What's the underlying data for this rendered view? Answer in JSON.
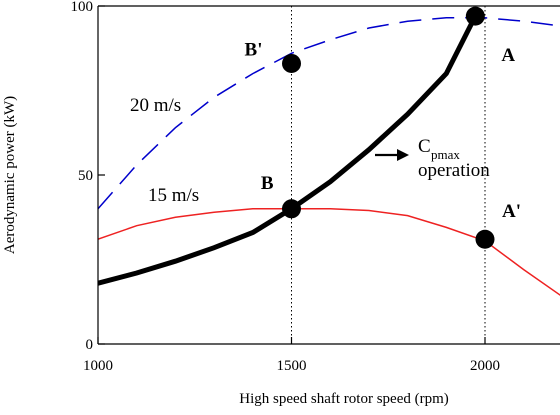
{
  "chart_data": {
    "type": "line",
    "xlabel": "High speed shaft rotor speed (rpm)",
    "ylabel": "Aerodynamic power (kW)",
    "xlim": [
      1000,
      2200
    ],
    "ylim": [
      0,
      100
    ],
    "xticks": [
      1000,
      1500,
      2000
    ],
    "yticks": [
      0,
      50,
      100
    ],
    "grid": false,
    "series": [
      {
        "name": "20 m/s",
        "style": "dashed",
        "color": "#0000cc",
        "x": [
          1000,
          1100,
          1200,
          1300,
          1400,
          1500,
          1600,
          1700,
          1800,
          1900,
          2000,
          2100,
          2200
        ],
        "y": [
          40,
          53,
          64,
          73,
          80,
          86,
          90,
          93.5,
          95.5,
          96.5,
          96.5,
          95.5,
          94
        ]
      },
      {
        "name": "15 m/s",
        "style": "solid",
        "color": "#ee2222",
        "x": [
          1000,
          1100,
          1200,
          1300,
          1400,
          1500,
          1600,
          1700,
          1800,
          1900,
          2000,
          2100,
          2200
        ],
        "y": [
          31,
          35,
          37.5,
          39,
          40,
          40,
          40,
          39.5,
          38,
          34.5,
          30.5,
          22,
          14
        ]
      },
      {
        "name": "Cpmax operation",
        "style": "solid",
        "color": "#000000",
        "x": [
          1000,
          1100,
          1200,
          1300,
          1400,
          1500,
          1600,
          1700,
          1800,
          1900,
          1975
        ],
        "y": [
          18,
          21,
          24.5,
          28.5,
          33,
          40,
          48,
          57.5,
          68,
          80,
          97
        ]
      }
    ],
    "points": [
      {
        "label": "B'",
        "x": 1500,
        "y": 83
      },
      {
        "label": "A",
        "x": 1975,
        "y": 97
      },
      {
        "label": "B",
        "x": 1500,
        "y": 40
      },
      {
        "label": "A'",
        "x": 2000,
        "y": 31
      }
    ],
    "reference_lines_x": [
      1500,
      2000
    ],
    "annotations": {
      "label_20": "20 m/s",
      "label_15": "15 m/s",
      "cp_C": "C",
      "cp_sub": "pmax",
      "cp_operation": "operation"
    }
  }
}
